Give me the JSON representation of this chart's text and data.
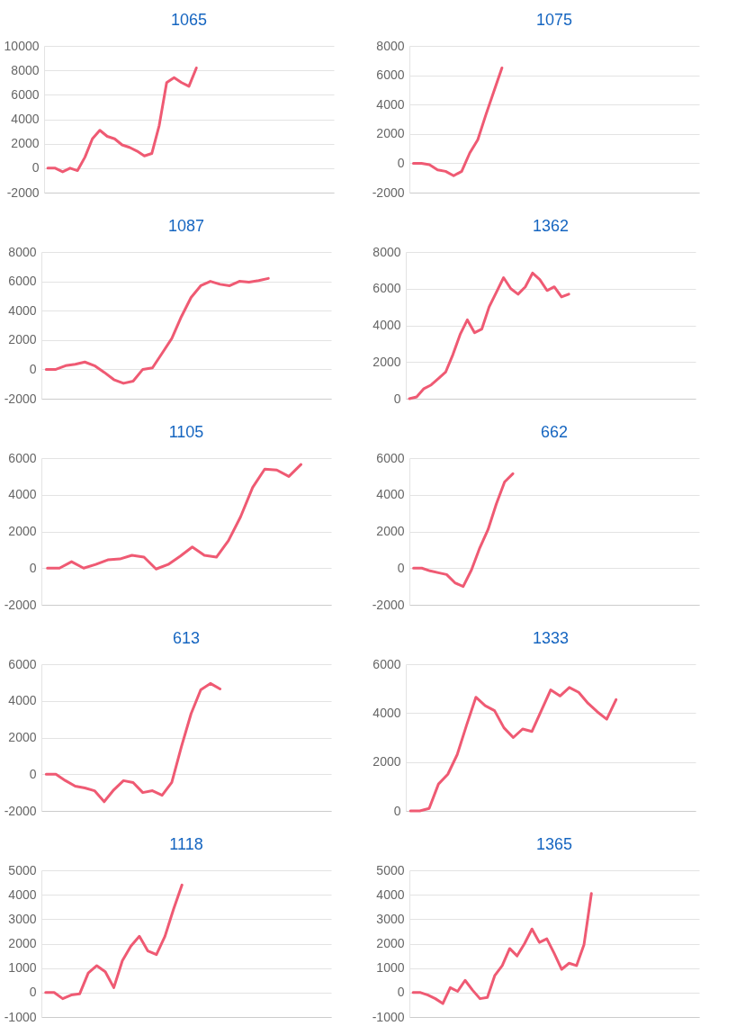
{
  "chart_data": [
    {
      "type": "line",
      "title": "1065",
      "color": "#ef5a73",
      "grid": "y",
      "ylim": [
        -2000,
        10000
      ],
      "yticks": [
        -2000,
        0,
        2000,
        4000,
        6000,
        8000,
        10000
      ],
      "categories": [
        null,
        null,
        null,
        null,
        null,
        null,
        null,
        null,
        null,
        null,
        null,
        null,
        null,
        null,
        null,
        null,
        null,
        null,
        null,
        null,
        null,
        null,
        null,
        null,
        null,
        null,
        null,
        null,
        null,
        null,
        null,
        null,
        null,
        null,
        null,
        null,
        null,
        null,
        null
      ],
      "values": [
        0,
        0,
        -300,
        0,
        -200,
        900,
        2400,
        3100,
        2600,
        2400,
        1900,
        1700,
        1400,
        1000,
        1200,
        3500,
        7000,
        7400,
        7000,
        6700,
        8200,
        null,
        null,
        null,
        null,
        null,
        null,
        null,
        null,
        null,
        null,
        null,
        null,
        null,
        null,
        null,
        null,
        null,
        null
      ]
    },
    {
      "type": "line",
      "title": "1075",
      "color": "#ef5a73",
      "grid": "y",
      "ylim": [
        -2000,
        8000
      ],
      "yticks": [
        -2000,
        0,
        2000,
        4000,
        6000,
        8000
      ],
      "categories": [
        null,
        null,
        null,
        null,
        null,
        null,
        null,
        null,
        null,
        null,
        null,
        null,
        null,
        null,
        null,
        null,
        null,
        null,
        null,
        null,
        null,
        null,
        null,
        null,
        null,
        null,
        null,
        null,
        null,
        null,
        null,
        null,
        null,
        null,
        null,
        null
      ],
      "values": [
        0,
        0,
        -100,
        -450,
        -550,
        -850,
        -550,
        700,
        1600,
        3300,
        4900,
        6500,
        null,
        null,
        null,
        null,
        null,
        null,
        null,
        null,
        null,
        null,
        null,
        null,
        null,
        null,
        null,
        null,
        null,
        null,
        null,
        null,
        null,
        null,
        null,
        null
      ]
    },
    {
      "type": "line",
      "title": "1087",
      "color": "#ef5a73",
      "grid": "y",
      "ylim": [
        -2000,
        8000
      ],
      "yticks": [
        -2000,
        0,
        2000,
        4000,
        6000,
        8000
      ],
      "categories": [
        null,
        null,
        null,
        null,
        null,
        null,
        null,
        null,
        null,
        null,
        null,
        null,
        null,
        null,
        null,
        null,
        null,
        null,
        null,
        null,
        null,
        null,
        null,
        null,
        null,
        null,
        null,
        null,
        null,
        null
      ],
      "values": [
        0,
        0,
        250,
        350,
        500,
        250,
        -200,
        -700,
        -950,
        -800,
        0,
        100,
        1100,
        2100,
        3600,
        4900,
        5700,
        6000,
        5800,
        5700,
        6000,
        5950,
        6050,
        6200,
        null,
        null,
        null,
        null,
        null,
        null
      ]
    },
    {
      "type": "line",
      "title": "1362",
      "color": "#ef5a73",
      "grid": "y",
      "ylim": [
        0,
        8000
      ],
      "yticks": [
        0,
        2000,
        4000,
        6000,
        8000
      ],
      "categories": [
        null,
        null,
        null,
        null,
        null,
        null,
        null,
        null,
        null,
        null,
        null,
        null,
        null,
        null,
        null,
        null,
        null,
        null,
        null,
        null,
        null,
        null,
        null,
        null,
        null,
        null,
        null,
        null,
        null,
        null,
        null,
        null,
        null,
        null,
        null,
        null,
        null,
        null,
        null,
        null
      ],
      "values": [
        0,
        100,
        550,
        750,
        1100,
        1450,
        2400,
        3500,
        4300,
        3600,
        3800,
        5000,
        5800,
        6600,
        6000,
        5700,
        6100,
        6850,
        6500,
        5900,
        6100,
        5550,
        5700,
        null,
        null,
        null,
        null,
        null,
        null,
        null,
        null,
        null,
        null,
        null,
        null,
        null,
        null,
        null,
        null,
        null
      ]
    },
    {
      "type": "line",
      "title": "1105",
      "color": "#ef5a73",
      "grid": "y",
      "ylim": [
        -2000,
        6000
      ],
      "yticks": [
        -2000,
        0,
        2000,
        4000,
        6000
      ],
      "categories": [
        null,
        null,
        null,
        null,
        null,
        null,
        null,
        null,
        null,
        null,
        null,
        null,
        null,
        null,
        null,
        null,
        null,
        null,
        null,
        null,
        null,
        null,
        null,
        null
      ],
      "values": [
        0,
        0,
        350,
        0,
        200,
        450,
        500,
        700,
        600,
        -50,
        200,
        650,
        1150,
        700,
        600,
        1500,
        2800,
        4400,
        5400,
        5350,
        5000,
        5650,
        null,
        null
      ]
    },
    {
      "type": "line",
      "title": "662",
      "color": "#ef5a73",
      "grid": "y",
      "ylim": [
        -2000,
        6000
      ],
      "yticks": [
        -2000,
        0,
        2000,
        4000,
        6000
      ],
      "categories": [
        null,
        null,
        null,
        null,
        null,
        null,
        null,
        null,
        null,
        null,
        null,
        null,
        null,
        null,
        null,
        null,
        null,
        null,
        null,
        null,
        null,
        null,
        null,
        null,
        null,
        null,
        null,
        null,
        null,
        null,
        null,
        null,
        null,
        null,
        null
      ],
      "values": [
        0,
        0,
        -150,
        -250,
        -350,
        -800,
        -1000,
        -100,
        1100,
        2100,
        3500,
        4700,
        5150,
        null,
        null,
        null,
        null,
        null,
        null,
        null,
        null,
        null,
        null,
        null,
        null,
        null,
        null,
        null,
        null,
        null,
        null,
        null,
        null,
        null,
        null
      ]
    },
    {
      "type": "line",
      "title": "613",
      "color": "#ef5a73",
      "grid": "y",
      "ylim": [
        -2000,
        6000
      ],
      "yticks": [
        -2000,
        0,
        2000,
        4000,
        6000
      ],
      "categories": [
        null,
        null,
        null,
        null,
        null,
        null,
        null,
        null,
        null,
        null,
        null,
        null,
        null,
        null,
        null,
        null,
        null,
        null,
        null,
        null,
        null,
        null,
        null,
        null,
        null,
        null,
        null,
        null,
        null,
        null
      ],
      "values": [
        0,
        0,
        -350,
        -650,
        -750,
        -900,
        -1500,
        -850,
        -350,
        -450,
        -1000,
        -900,
        -1150,
        -450,
        1500,
        3300,
        4600,
        4950,
        4650,
        null,
        null,
        null,
        null,
        null,
        null,
        null,
        null,
        null,
        null,
        null
      ]
    },
    {
      "type": "line",
      "title": "1333",
      "color": "#ef5a73",
      "grid": "y",
      "ylim": [
        0,
        6000
      ],
      "yticks": [
        0,
        2000,
        4000,
        6000
      ],
      "categories": [
        null,
        null,
        null,
        null,
        null,
        null,
        null,
        null,
        null,
        null,
        null,
        null,
        null,
        null,
        null,
        null,
        null,
        null,
        null,
        null,
        null,
        null,
        null,
        null,
        null,
        null,
        null,
        null,
        null,
        null,
        null
      ],
      "values": [
        0,
        0,
        100,
        1100,
        1500,
        2300,
        3500,
        4650,
        4300,
        4100,
        3400,
        3000,
        3350,
        3250,
        4100,
        4950,
        4700,
        5050,
        4850,
        4400,
        4050,
        3750,
        4550,
        null,
        null,
        null,
        null,
        null,
        null,
        null,
        null
      ]
    },
    {
      "type": "line",
      "title": "1118",
      "color": "#ef5a73",
      "grid": "y",
      "ylim": [
        -1000,
        5000
      ],
      "yticks": [
        -1000,
        0,
        1000,
        2000,
        3000,
        4000,
        5000
      ],
      "categories": [
        null,
        null,
        null,
        null,
        null,
        null,
        null,
        null,
        null,
        null,
        null,
        null,
        null,
        null,
        null,
        null,
        null,
        null,
        null,
        null,
        null,
        null,
        null,
        null,
        null,
        null,
        null,
        null,
        null,
        null,
        null,
        null,
        null,
        null
      ],
      "values": [
        0,
        0,
        -250,
        -100,
        -50,
        800,
        1100,
        850,
        200,
        1300,
        1900,
        2300,
        1700,
        1550,
        2300,
        3400,
        4400,
        null,
        null,
        null,
        null,
        null,
        null,
        null,
        null,
        null,
        null,
        null,
        null,
        null,
        null,
        null,
        null,
        null
      ]
    },
    {
      "type": "line",
      "title": "1365",
      "color": "#ef5a73",
      "grid": "y",
      "ylim": [
        -1000,
        5000
      ],
      "yticks": [
        -1000,
        0,
        1000,
        2000,
        3000,
        4000,
        5000
      ],
      "categories": [
        null,
        null,
        null,
        null,
        null,
        null,
        null,
        null,
        null,
        null,
        null,
        null,
        null,
        null,
        null,
        null,
        null,
        null,
        null,
        null,
        null,
        null,
        null,
        null,
        null,
        null,
        null,
        null,
        null,
        null,
        null,
        null,
        null,
        null,
        null,
        null,
        null,
        null,
        null
      ],
      "values": [
        0,
        0,
        -100,
        -250,
        -450,
        200,
        50,
        500,
        100,
        -250,
        -200,
        700,
        1100,
        1800,
        1500,
        2000,
        2600,
        2050,
        2200,
        1600,
        950,
        1200,
        1100,
        1950,
        4050,
        null,
        null,
        null,
        null,
        null,
        null,
        null,
        null,
        null,
        null,
        null,
        null,
        null,
        null
      ]
    }
  ]
}
